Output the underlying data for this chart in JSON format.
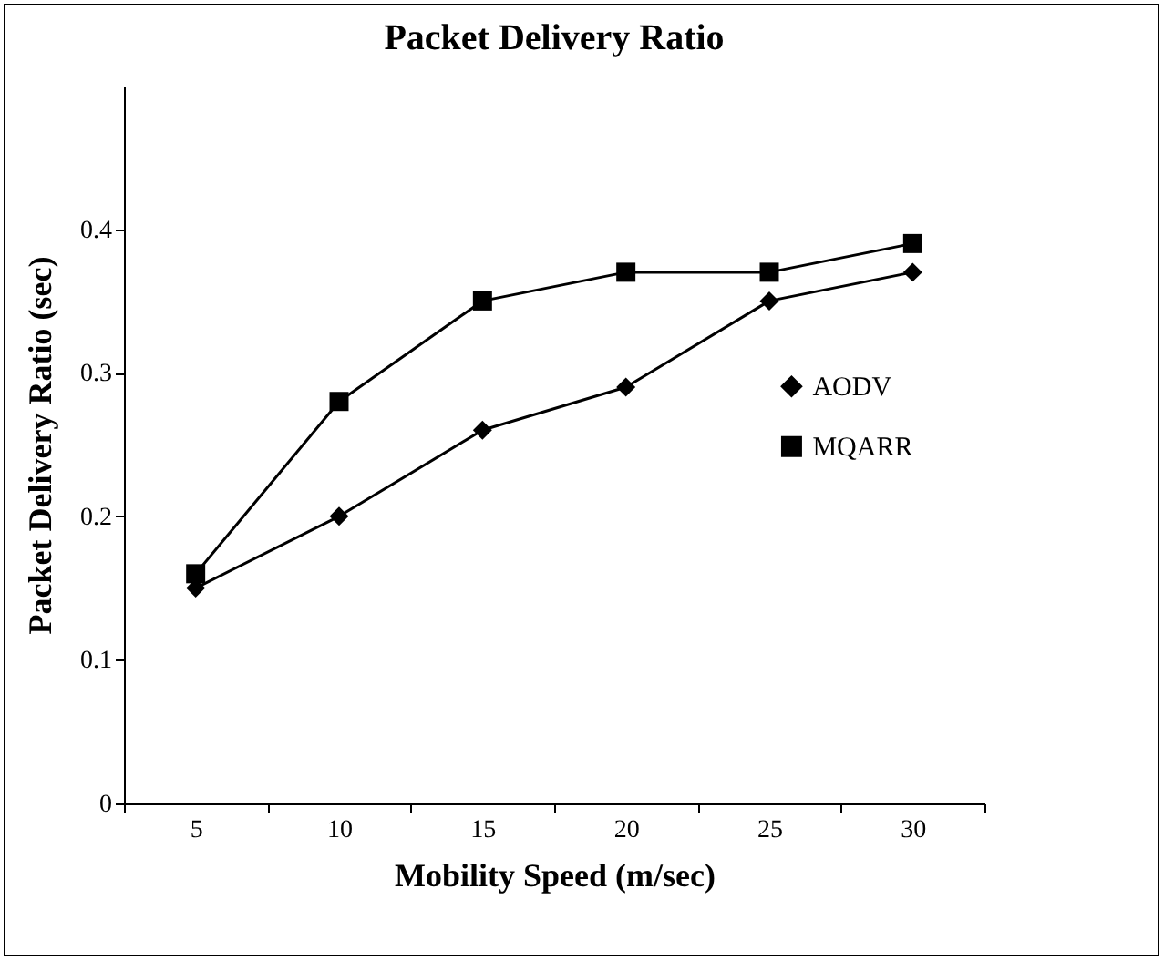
{
  "chart_data": {
    "type": "line",
    "title": "Packet Delivery Ratio",
    "xlabel": "Mobility Speed (m/sec)",
    "ylabel": "Packet Delivery Ratio (sec)",
    "categories": [
      "5",
      "10",
      "15",
      "20",
      "25",
      "30"
    ],
    "ylim": [
      0,
      0.5
    ],
    "yticks": [
      0,
      0.1,
      0.2,
      0.3,
      0.4
    ],
    "grid": false,
    "legend": "right",
    "series": [
      {
        "name": "AODV",
        "color": "#000000",
        "marker": "diamond",
        "values": [
          0.15,
          0.2,
          0.26,
          0.29,
          0.35,
          0.37
        ]
      },
      {
        "name": "MQARR",
        "color": "#000000",
        "marker": "square",
        "values": [
          0.16,
          0.28,
          0.35,
          0.37,
          0.37,
          0.39
        ]
      }
    ]
  }
}
